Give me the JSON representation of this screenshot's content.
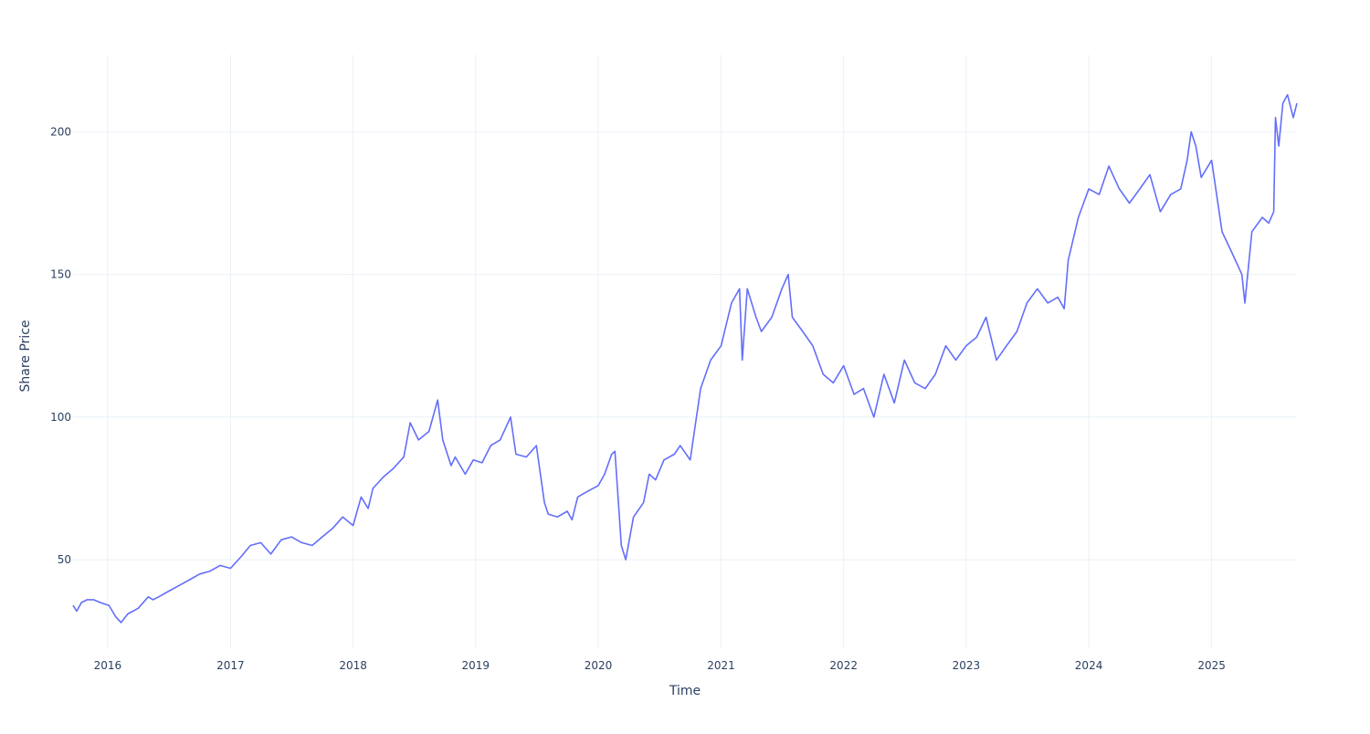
{
  "chart_data": {
    "type": "line",
    "title": "",
    "xlabel": "Time",
    "ylabel": "Share Price",
    "xlim": [
      "2015-09-20",
      "2025-09-12"
    ],
    "ylim": [
      19,
      227
    ],
    "x_ticks": [
      "2016",
      "2017",
      "2018",
      "2019",
      "2020",
      "2021",
      "2022",
      "2023",
      "2024",
      "2025"
    ],
    "y_ticks": [
      50,
      100,
      150,
      200
    ],
    "grid": true,
    "legend": "none",
    "line_color": "#636efa",
    "series": [
      {
        "x": [
          "2015-09-20",
          "2015-10-01",
          "2015-10-15",
          "2015-11-01",
          "2015-11-20",
          "2015-12-10",
          "2016-01-05",
          "2016-01-25",
          "2016-02-10",
          "2016-03-01",
          "2016-04-01",
          "2016-05-01",
          "2016-05-15",
          "2016-06-01",
          "2016-07-01",
          "2016-08-01",
          "2016-09-01",
          "2016-10-01",
          "2016-11-01",
          "2016-12-01",
          "2017-01-01",
          "2017-02-01",
          "2017-03-01",
          "2017-04-01",
          "2017-05-01",
          "2017-06-01",
          "2017-07-01",
          "2017-08-01",
          "2017-09-01",
          "2017-10-01",
          "2017-11-01",
          "2017-12-01",
          "2018-01-01",
          "2018-01-25",
          "2018-02-15",
          "2018-03-01",
          "2018-04-01",
          "2018-05-01",
          "2018-06-01",
          "2018-06-20",
          "2018-07-15",
          "2018-08-15",
          "2018-09-10",
          "2018-09-25",
          "2018-10-20",
          "2018-11-01",
          "2018-12-01",
          "2018-12-25",
          "2019-01-20",
          "2019-02-15",
          "2019-03-15",
          "2019-04-15",
          "2019-05-01",
          "2019-06-01",
          "2019-07-01",
          "2019-07-25",
          "2019-08-05",
          "2019-09-01",
          "2019-10-01",
          "2019-10-15",
          "2019-11-01",
          "2019-12-01",
          "2020-01-01",
          "2020-01-20",
          "2020-02-10",
          "2020-02-20",
          "2020-03-10",
          "2020-03-23",
          "2020-04-15",
          "2020-05-15",
          "2020-06-01",
          "2020-06-20",
          "2020-07-15",
          "2020-08-15",
          "2020-09-01",
          "2020-10-01",
          "2020-11-01",
          "2020-12-01",
          "2021-01-01",
          "2021-02-01",
          "2021-02-25",
          "2021-03-05",
          "2021-03-20",
          "2021-04-15",
          "2021-05-01",
          "2021-06-01",
          "2021-07-01",
          "2021-07-20",
          "2021-08-01",
          "2021-09-01",
          "2021-10-01",
          "2021-11-01",
          "2021-12-01",
          "2022-01-01",
          "2022-02-01",
          "2022-03-01",
          "2022-04-01",
          "2022-05-01",
          "2022-06-01",
          "2022-07-01",
          "2022-08-01",
          "2022-09-01",
          "2022-10-01",
          "2022-11-01",
          "2022-12-01",
          "2023-01-01",
          "2023-02-01",
          "2023-03-01",
          "2023-04-01",
          "2023-05-01",
          "2023-06-01",
          "2023-07-01",
          "2023-08-01",
          "2023-09-01",
          "2023-10-01",
          "2023-10-20",
          "2023-11-01",
          "2023-12-01",
          "2024-01-01",
          "2024-02-01",
          "2024-03-01",
          "2024-04-01",
          "2024-05-01",
          "2024-06-01",
          "2024-07-01",
          "2024-08-01",
          "2024-09-01",
          "2024-10-01",
          "2024-10-20",
          "2024-11-01",
          "2024-11-15",
          "2024-12-01",
          "2025-01-01",
          "2025-02-01",
          "2025-03-01",
          "2025-04-01",
          "2025-04-10",
          "2025-05-01",
          "2025-06-01",
          "2025-06-20",
          "2025-07-05",
          "2025-07-10",
          "2025-07-20",
          "2025-08-01",
          "2025-08-15",
          "2025-09-01",
          "2025-09-12"
        ],
        "y": [
          34,
          32,
          35,
          36,
          36,
          35,
          34,
          30,
          28,
          31,
          33,
          37,
          36,
          37,
          39,
          41,
          43,
          45,
          46,
          48,
          47,
          51,
          55,
          56,
          52,
          57,
          58,
          56,
          55,
          58,
          61,
          65,
          62,
          72,
          68,
          75,
          79,
          82,
          86,
          98,
          92,
          95,
          106,
          92,
          83,
          86,
          80,
          85,
          84,
          90,
          92,
          100,
          87,
          86,
          90,
          70,
          66,
          65,
          67,
          64,
          72,
          74,
          76,
          80,
          87,
          88,
          55,
          50,
          65,
          70,
          80,
          78,
          85,
          87,
          90,
          85,
          110,
          120,
          125,
          140,
          145,
          120,
          145,
          135,
          130,
          135,
          145,
          150,
          135,
          130,
          125,
          115,
          112,
          118,
          108,
          110,
          100,
          115,
          105,
          120,
          112,
          110,
          115,
          125,
          120,
          125,
          128,
          135,
          120,
          125,
          130,
          140,
          145,
          140,
          142,
          138,
          155,
          170,
          180,
          178,
          188,
          180,
          175,
          180,
          185,
          172,
          178,
          180,
          190,
          200,
          195,
          184,
          190,
          165,
          158,
          150,
          140,
          165,
          170,
          168,
          172,
          205,
          195,
          210,
          213,
          205,
          210
        ]
      }
    ]
  }
}
